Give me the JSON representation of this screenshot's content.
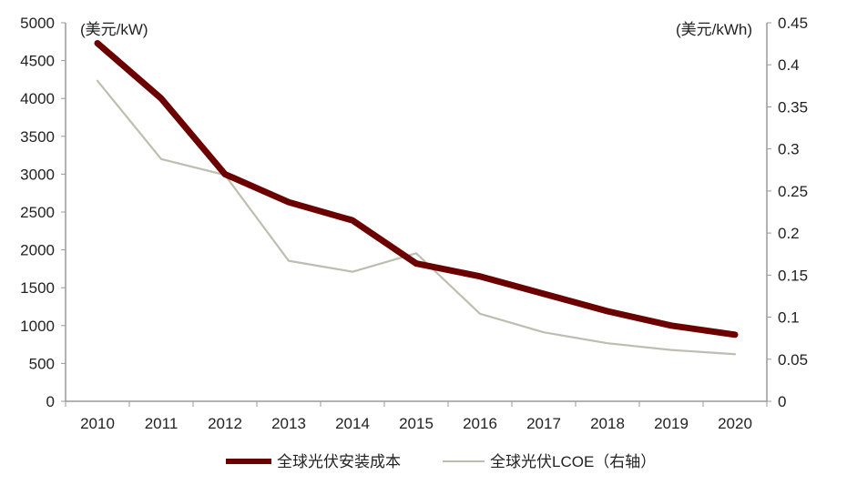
{
  "chart_data": {
    "type": "line",
    "categories": [
      "2010",
      "2011",
      "2012",
      "2013",
      "2014",
      "2015",
      "2016",
      "2017",
      "2018",
      "2019",
      "2020"
    ],
    "left_axis": {
      "label": "(美元/kW)",
      "ylim": [
        0,
        5000
      ],
      "ticks": [
        0,
        500,
        1000,
        1500,
        2000,
        2500,
        3000,
        3500,
        4000,
        4500,
        5000
      ]
    },
    "right_axis": {
      "label": "(美元/kWh)",
      "ylim": [
        0,
        0.45
      ],
      "ticks": [
        "0",
        "0.05",
        "0.1",
        "0.15",
        "0.2",
        "0.25",
        "0.3",
        "0.35",
        "0.4",
        "0.45"
      ]
    },
    "series": [
      {
        "name": "全球光伏安装成本",
        "axis": "left",
        "color": "#6b0000",
        "values": [
          4730,
          4000,
          3000,
          2630,
          2390,
          1820,
          1650,
          1420,
          1190,
          1000,
          880
        ]
      },
      {
        "name": "全球光伏LCOE（右轴）",
        "axis": "right",
        "color": "#bfbdb0",
        "values": [
          0.381,
          0.288,
          0.269,
          0.167,
          0.154,
          0.176,
          0.104,
          0.082,
          0.069,
          0.061,
          0.056
        ]
      }
    ],
    "grid": false,
    "legend": "bottom"
  }
}
